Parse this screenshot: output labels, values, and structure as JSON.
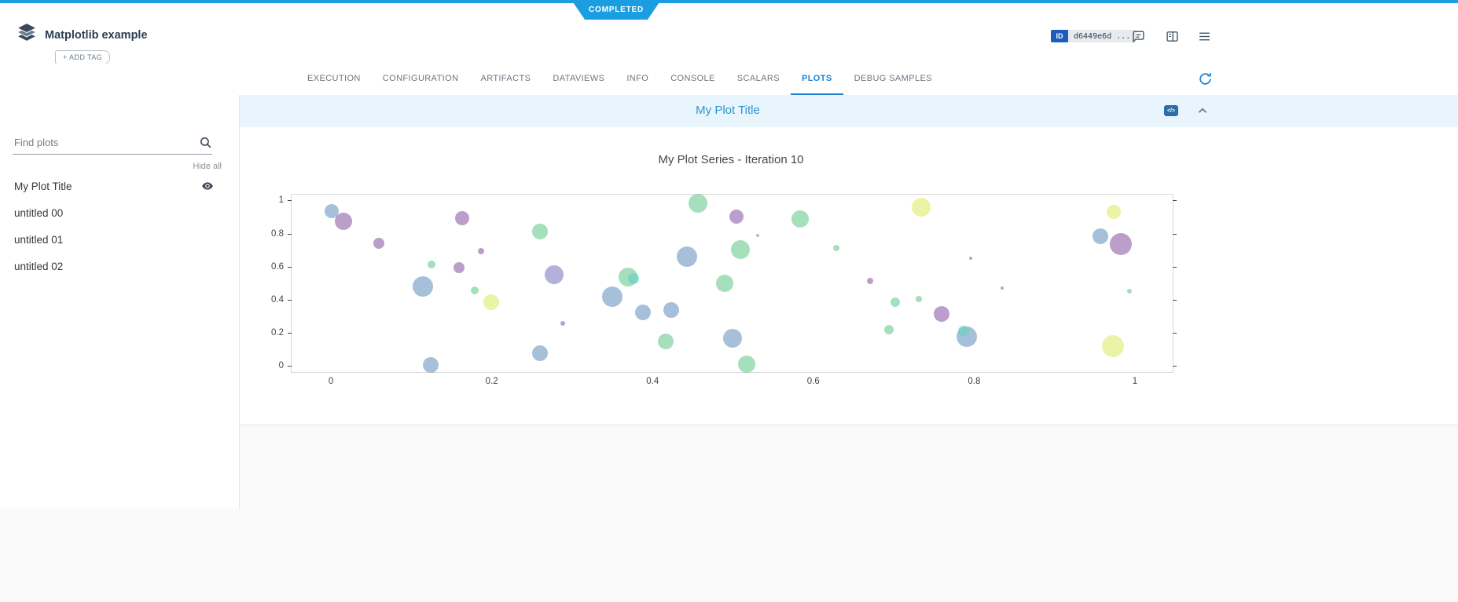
{
  "status_banner": {
    "label": "COMPLETED"
  },
  "header": {
    "app_title": "Matplotlib example",
    "add_tag_label": "+ ADD TAG",
    "id_label": "ID",
    "id_value": "d6449e6d ..."
  },
  "tabs": {
    "items": [
      "EXECUTION",
      "CONFIGURATION",
      "ARTIFACTS",
      "DATAVIEWS",
      "INFO",
      "CONSOLE",
      "SCALARS",
      "PLOTS",
      "DEBUG SAMPLES"
    ],
    "active": "PLOTS"
  },
  "sidebar": {
    "search_placeholder": "Find plots",
    "hide_all_label": "Hide all",
    "items": [
      {
        "label": "My Plot Title",
        "visible": true
      },
      {
        "label": "untitled 00",
        "visible": false
      },
      {
        "label": "untitled 01",
        "visible": false
      },
      {
        "label": "untitled 02",
        "visible": false
      }
    ]
  },
  "plot_panel": {
    "title": "My Plot Title",
    "code_chip_label": "</>"
  },
  "chart_data": {
    "type": "scatter",
    "title": "My Plot Series - Iteration 10",
    "xlabel": "",
    "ylabel": "",
    "xlim": [
      -0.049,
      1.047
    ],
    "ylim": [
      -0.038,
      1.038
    ],
    "grid": false,
    "x_ticks": [
      0,
      0.2,
      0.4,
      0.6,
      0.8,
      1
    ],
    "x_tick_labels": [
      "0",
      "0.2",
      "0.4",
      "0.6",
      "0.8",
      "1"
    ],
    "y_ticks": [
      0,
      0.2,
      0.4,
      0.6,
      0.8,
      1
    ],
    "y_tick_labels": [
      "0",
      "0.2",
      "0.4",
      "0.6",
      "0.8",
      "1"
    ],
    "colors": {
      "blue": "#85a8cc",
      "purple": "#a178b4",
      "violet": "#9591cb",
      "green": "#82d3a1",
      "teal": "#6fcfc4",
      "yellow": "#e3ee83"
    },
    "points": [
      {
        "x": 0.001,
        "y": 0.94,
        "r": 9,
        "c": "blue"
      },
      {
        "x": 0.016,
        "y": 0.876,
        "r": 11,
        "c": "purple"
      },
      {
        "x": 0.06,
        "y": 0.743,
        "r": 7,
        "c": "purple"
      },
      {
        "x": 0.125,
        "y": 0.614,
        "r": 5,
        "c": "green"
      },
      {
        "x": 0.114,
        "y": 0.481,
        "r": 13,
        "c": "blue"
      },
      {
        "x": 0.124,
        "y": 0.005,
        "r": 10,
        "c": "blue"
      },
      {
        "x": 0.159,
        "y": 0.595,
        "r": 7,
        "c": "purple"
      },
      {
        "x": 0.163,
        "y": 0.895,
        "r": 9,
        "c": "purple"
      },
      {
        "x": 0.179,
        "y": 0.457,
        "r": 5,
        "c": "green"
      },
      {
        "x": 0.187,
        "y": 0.695,
        "r": 4,
        "c": "purple"
      },
      {
        "x": 0.199,
        "y": 0.386,
        "r": 10,
        "c": "yellow"
      },
      {
        "x": 0.26,
        "y": 0.814,
        "r": 10,
        "c": "green"
      },
      {
        "x": 0.278,
        "y": 0.552,
        "r": 12,
        "c": "violet"
      },
      {
        "x": 0.26,
        "y": 0.076,
        "r": 10,
        "c": "blue"
      },
      {
        "x": 0.288,
        "y": 0.257,
        "r": 3,
        "c": "purple"
      },
      {
        "x": 0.35,
        "y": 0.419,
        "r": 13,
        "c": "blue"
      },
      {
        "x": 0.369,
        "y": 0.538,
        "r": 12,
        "c": "green"
      },
      {
        "x": 0.376,
        "y": 0.529,
        "r": 7,
        "c": "teal"
      },
      {
        "x": 0.388,
        "y": 0.324,
        "r": 10,
        "c": "blue"
      },
      {
        "x": 0.416,
        "y": 0.148,
        "r": 10,
        "c": "green"
      },
      {
        "x": 0.423,
        "y": 0.338,
        "r": 10,
        "c": "blue"
      },
      {
        "x": 0.443,
        "y": 0.662,
        "r": 13,
        "c": "blue"
      },
      {
        "x": 0.456,
        "y": 0.986,
        "r": 12,
        "c": "green"
      },
      {
        "x": 0.504,
        "y": 0.905,
        "r": 9,
        "c": "purple"
      },
      {
        "x": 0.49,
        "y": 0.5,
        "r": 11,
        "c": "green"
      },
      {
        "x": 0.499,
        "y": 0.167,
        "r": 12,
        "c": "blue"
      },
      {
        "x": 0.509,
        "y": 0.705,
        "r": 12,
        "c": "green"
      },
      {
        "x": 0.517,
        "y": 0.01,
        "r": 11,
        "c": "green"
      },
      {
        "x": 0.531,
        "y": 0.79,
        "r": 2,
        "c": "blue"
      },
      {
        "x": 0.584,
        "y": 0.89,
        "r": 11,
        "c": "green"
      },
      {
        "x": 0.629,
        "y": 0.714,
        "r": 4,
        "c": "green"
      },
      {
        "x": 0.671,
        "y": 0.514,
        "r": 4,
        "c": "purple"
      },
      {
        "x": 0.694,
        "y": 0.219,
        "r": 6,
        "c": "green"
      },
      {
        "x": 0.702,
        "y": 0.386,
        "r": 6,
        "c": "green"
      },
      {
        "x": 0.731,
        "y": 0.405,
        "r": 4,
        "c": "green"
      },
      {
        "x": 0.734,
        "y": 0.962,
        "r": 12,
        "c": "yellow"
      },
      {
        "x": 0.76,
        "y": 0.314,
        "r": 10,
        "c": "purple"
      },
      {
        "x": 0.791,
        "y": 0.176,
        "r": 13,
        "c": "blue"
      },
      {
        "x": 0.787,
        "y": 0.21,
        "r": 7,
        "c": "teal"
      },
      {
        "x": 0.796,
        "y": 0.652,
        "r": 2,
        "c": "purple"
      },
      {
        "x": 0.835,
        "y": 0.471,
        "r": 2,
        "c": "purple"
      },
      {
        "x": 0.957,
        "y": 0.786,
        "r": 10,
        "c": "blue"
      },
      {
        "x": 0.974,
        "y": 0.933,
        "r": 9,
        "c": "yellow"
      },
      {
        "x": 0.982,
        "y": 0.738,
        "r": 14,
        "c": "purple"
      },
      {
        "x": 0.973,
        "y": 0.119,
        "r": 14,
        "c": "yellow"
      },
      {
        "x": 0.993,
        "y": 0.452,
        "r": 3,
        "c": "green"
      }
    ]
  }
}
